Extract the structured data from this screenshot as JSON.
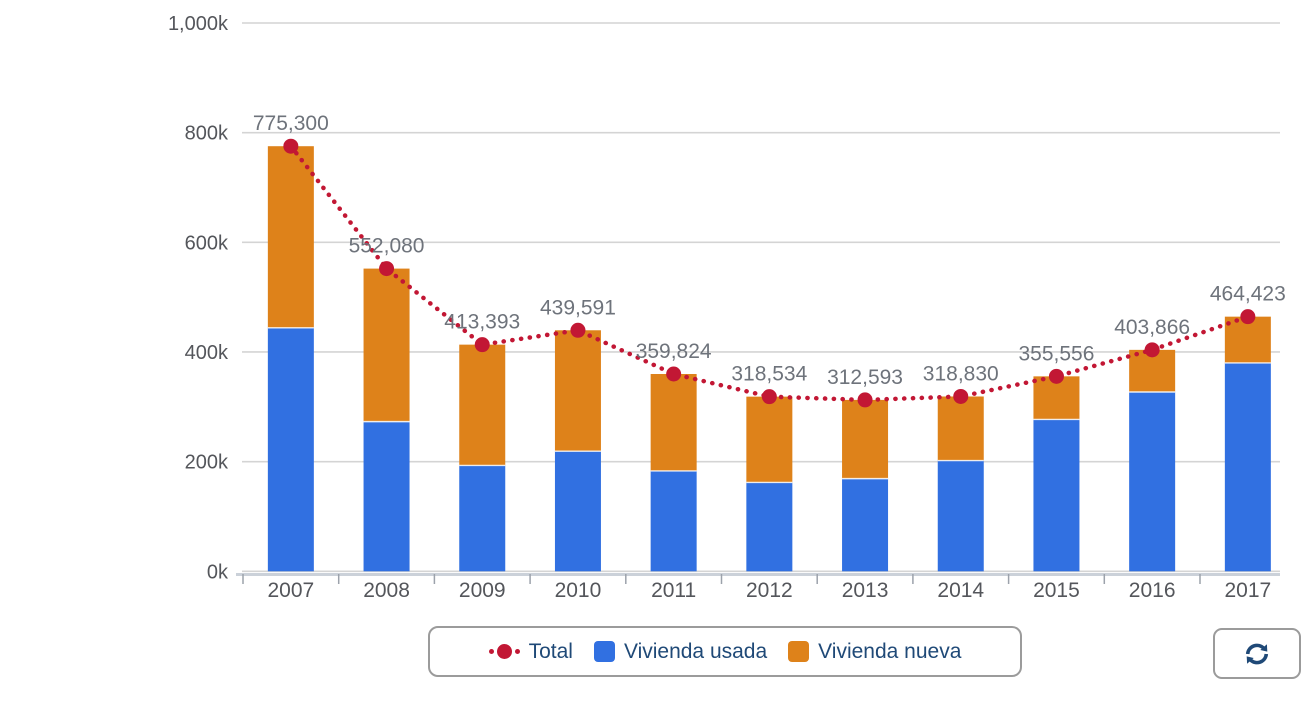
{
  "page": {
    "background": "#ffffff"
  },
  "chart_data": {
    "type": "bar",
    "subtype": "stacked-column-with-dotted-total-line",
    "title": "",
    "xlabel": "",
    "ylabel": "",
    "categories": [
      "2007",
      "2008",
      "2009",
      "2010",
      "2011",
      "2012",
      "2013",
      "2014",
      "2015",
      "2016",
      "2017"
    ],
    "series": [
      {
        "name": "Total",
        "type": "line",
        "style": "dotted",
        "color": "#C21734",
        "values": [
          775300,
          552080,
          413393,
          439591,
          359824,
          318534,
          312593,
          318830,
          355556,
          403866,
          464423
        ]
      },
      {
        "name": "Vivienda usada",
        "type": "bar",
        "color": "#3170E1",
        "values": [
          444000,
          273000,
          193000,
          219000,
          183000,
          162000,
          169000,
          202000,
          277000,
          327000,
          380000
        ]
      },
      {
        "name": "Vivienda nueva",
        "type": "bar",
        "color": "#DE821A",
        "values": [
          331300,
          279080,
          220393,
          220591,
          176824,
          156534,
          143593,
          116830,
          78556,
          76866,
          84423
        ]
      }
    ],
    "data_labels_visible": true,
    "ylim": [
      0,
      1000000
    ],
    "yticks": [
      {
        "value": 0,
        "label": "0k"
      },
      {
        "value": 200000,
        "label": "200k"
      },
      {
        "value": 400000,
        "label": "400k"
      },
      {
        "value": 600000,
        "label": "600k"
      },
      {
        "value": 800000,
        "label": "800k"
      },
      {
        "value": 1000000,
        "label": "1,000k"
      }
    ],
    "grid": true,
    "legend_position": "bottom",
    "colors": {
      "grid": "#D4D4D4",
      "axis_line": "#CBD1D9",
      "axis_tick": "#9CA2AB",
      "axis_text": "#54565B",
      "data_label": "#6E737B"
    }
  },
  "legend": {
    "text_color": "#1F4977",
    "items": [
      {
        "label": "Total",
        "marker": "dotted-line-dot",
        "color": "#C21734"
      },
      {
        "label": "Vivienda usada",
        "marker": "square",
        "color": "#3170E1"
      },
      {
        "label": "Vivienda nueva",
        "marker": "square",
        "color": "#DE821A"
      }
    ]
  },
  "toolbar": {
    "refresh_icon": "refresh-icon",
    "icon_color": "#1F4977"
  }
}
